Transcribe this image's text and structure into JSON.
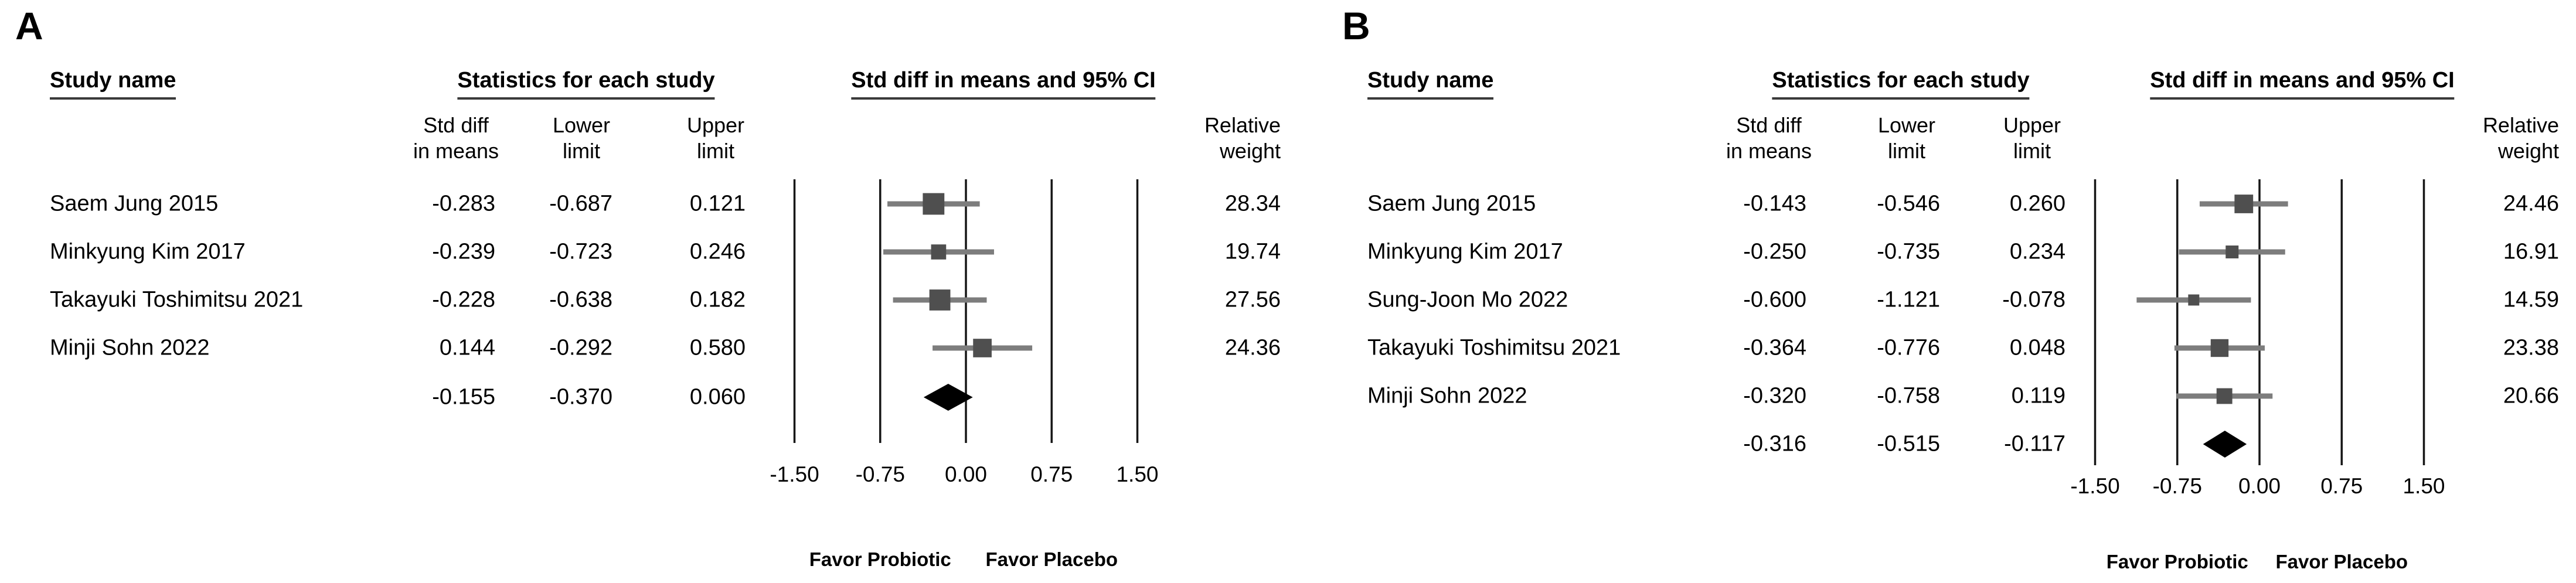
{
  "panels": [
    {
      "label": "A",
      "headers": {
        "study": "Study name",
        "stats": "Statistics for each study",
        "ci": "Std diff in means and 95% CI"
      },
      "columns": {
        "std": "Std diff\nin means",
        "lower": "Lower\nlimit",
        "upper": "Upper\nlimit",
        "weight": "Relative\nweight"
      },
      "rows": [
        {
          "study": "Saem Jung 2015",
          "std": "-0.283",
          "lower": "-0.687",
          "upper": "0.121",
          "weight": "28.34"
        },
        {
          "study": "Minkyung Kim 2017",
          "std": "-0.239",
          "lower": "-0.723",
          "upper": "0.246",
          "weight": "19.74"
        },
        {
          "study": "Takayuki Toshimitsu 2021",
          "std": "-0.228",
          "lower": "-0.638",
          "upper": "0.182",
          "weight": "27.56"
        },
        {
          "study": "Minji Sohn 2022",
          "std": "0.144",
          "lower": "-0.292",
          "upper": "0.580",
          "weight": "24.36"
        }
      ],
      "overall": {
        "std": "-0.155",
        "lower": "-0.370",
        "upper": "0.060"
      }
    },
    {
      "label": "B",
      "headers": {
        "study": "Study name",
        "stats": "Statistics for each study",
        "ci": "Std diff in means and 95% CI"
      },
      "columns": {
        "std": "Std diff\nin means",
        "lower": "Lower\nlimit",
        "upper": "Upper\nlimit",
        "weight": "Relative\nweight"
      },
      "rows": [
        {
          "study": "Saem Jung 2015",
          "std": "-0.143",
          "lower": "-0.546",
          "upper": "0.260",
          "weight": "24.46"
        },
        {
          "study": "Minkyung Kim 2017",
          "std": "-0.250",
          "lower": "-0.735",
          "upper": "0.234",
          "weight": "16.91"
        },
        {
          "study": "Sung-Joon Mo 2022",
          "std": "-0.600",
          "lower": "-1.121",
          "upper": "-0.078",
          "weight": "14.59"
        },
        {
          "study": "Takayuki Toshimitsu 2021",
          "std": "-0.364",
          "lower": "-0.776",
          "upper": "0.048",
          "weight": "23.38"
        },
        {
          "study": "Minji Sohn 2022",
          "std": "-0.320",
          "lower": "-0.758",
          "upper": "0.119",
          "weight": "20.66"
        }
      ],
      "overall": {
        "std": "-0.316",
        "lower": "-0.515",
        "upper": "-0.117"
      }
    }
  ],
  "chart_data": [
    {
      "type": "scatter",
      "variant": "forest-plot",
      "title": "Std diff in means and 95% CI",
      "xlim": [
        -1.5,
        1.5
      ],
      "x_ticks": [
        -1.5,
        -0.75,
        0,
        0.75,
        1.5
      ],
      "tick_labels": [
        "-1.50",
        "-0.75",
        "0.00",
        "0.75",
        "1.50"
      ],
      "grid": true,
      "studies": [
        {
          "name": "Saem Jung 2015",
          "std_diff": -0.283,
          "lower": -0.687,
          "upper": 0.121,
          "weight": 28.34
        },
        {
          "name": "Minkyung Kim 2017",
          "std_diff": -0.239,
          "lower": -0.723,
          "upper": 0.246,
          "weight": 19.74
        },
        {
          "name": "Takayuki Toshimitsu 2021",
          "std_diff": -0.228,
          "lower": -0.638,
          "upper": 0.182,
          "weight": 27.56
        },
        {
          "name": "Minji Sohn 2022",
          "std_diff": 0.144,
          "lower": -0.292,
          "upper": 0.58,
          "weight": 24.36
        }
      ],
      "overall": {
        "std_diff": -0.155,
        "lower": -0.37,
        "upper": 0.06
      },
      "annotations": [
        {
          "text": "Favor Probiotic",
          "x": -0.75
        },
        {
          "text": "Favor Placebo",
          "x": 0.75
        }
      ]
    },
    {
      "type": "scatter",
      "variant": "forest-plot",
      "title": "Std diff in means and 95% CI",
      "xlim": [
        -1.5,
        1.5
      ],
      "x_ticks": [
        -1.5,
        -0.75,
        0,
        0.75,
        1.5
      ],
      "tick_labels": [
        "-1.50",
        "-0.75",
        "0.00",
        "0.75",
        "1.50"
      ],
      "grid": true,
      "studies": [
        {
          "name": "Saem Jung 2015",
          "std_diff": -0.143,
          "lower": -0.546,
          "upper": 0.26,
          "weight": 24.46
        },
        {
          "name": "Minkyung Kim 2017",
          "std_diff": -0.25,
          "lower": -0.735,
          "upper": 0.234,
          "weight": 16.91
        },
        {
          "name": "Sung-Joon Mo 2022",
          "std_diff": -0.6,
          "lower": -1.121,
          "upper": -0.078,
          "weight": 14.59
        },
        {
          "name": "Takayuki Toshimitsu 2021",
          "std_diff": -0.364,
          "lower": -0.776,
          "upper": 0.048,
          "weight": 23.38
        },
        {
          "name": "Minji Sohn 2022",
          "std_diff": -0.32,
          "lower": -0.758,
          "upper": 0.119,
          "weight": 20.66
        }
      ],
      "overall": {
        "std_diff": -0.316,
        "lower": -0.515,
        "upper": -0.117
      },
      "annotations": [
        {
          "text": "Favor Probiotic",
          "x": -0.75
        },
        {
          "text": "Favor Placebo",
          "x": 0.75
        }
      ]
    }
  ],
  "colors": {
    "marker": "#4f4f4f",
    "ci_line": "#7d7d7d",
    "gridline": "#161616",
    "diamond": "#000000",
    "text": "#000000"
  }
}
